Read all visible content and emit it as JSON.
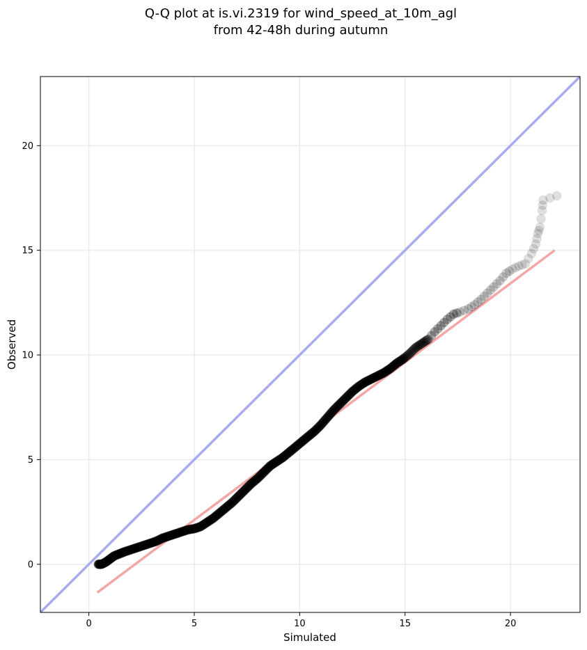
{
  "chart_data": {
    "type": "scatter",
    "title": "Q-Q plot at is.vi.2319 for wind_speed_at_10m_agl",
    "subtitle": "from 42-48h during autumn",
    "xlabel": "Simulated",
    "ylabel": "Observed",
    "xlim": [
      -2.3,
      23.3
    ],
    "ylim": [
      -2.3,
      23.3
    ],
    "xticks": [
      0,
      5,
      10,
      15,
      20
    ],
    "yticks": [
      0,
      5,
      10,
      15,
      20
    ],
    "xtick_labels": [
      "0",
      "5",
      "10",
      "15",
      "20"
    ],
    "ytick_labels": [
      "0",
      "5",
      "10",
      "15",
      "20"
    ],
    "grid": true,
    "identity_line": {
      "color": "#a8aaf2",
      "from": [
        -2.3,
        -2.3
      ],
      "to": [
        23.3,
        23.3
      ]
    },
    "fit_line": {
      "color": "#f4a6a6",
      "from": [
        0.4,
        -1.35
      ],
      "to": [
        22.1,
        15.0
      ]
    },
    "point_color": "#000000",
    "points": [
      [
        0.45,
        0.0
      ],
      [
        0.6,
        0.0
      ],
      [
        0.8,
        0.1
      ],
      [
        1.0,
        0.25
      ],
      [
        1.2,
        0.4
      ],
      [
        1.45,
        0.5
      ],
      [
        1.7,
        0.6
      ],
      [
        2.0,
        0.7
      ],
      [
        2.3,
        0.8
      ],
      [
        2.6,
        0.9
      ],
      [
        2.9,
        1.0
      ],
      [
        3.2,
        1.1
      ],
      [
        3.5,
        1.25
      ],
      [
        3.8,
        1.35
      ],
      [
        4.1,
        1.45
      ],
      [
        4.4,
        1.55
      ],
      [
        4.7,
        1.65
      ],
      [
        5.0,
        1.7
      ],
      [
        5.3,
        1.8
      ],
      [
        5.6,
        2.0
      ],
      [
        5.9,
        2.2
      ],
      [
        6.2,
        2.45
      ],
      [
        6.5,
        2.7
      ],
      [
        6.8,
        2.95
      ],
      [
        7.1,
        3.25
      ],
      [
        7.4,
        3.55
      ],
      [
        7.7,
        3.85
      ],
      [
        8.0,
        4.1
      ],
      [
        8.3,
        4.4
      ],
      [
        8.6,
        4.7
      ],
      [
        8.9,
        4.9
      ],
      [
        9.2,
        5.1
      ],
      [
        9.5,
        5.35
      ],
      [
        9.8,
        5.6
      ],
      [
        10.1,
        5.85
      ],
      [
        10.4,
        6.1
      ],
      [
        10.7,
        6.35
      ],
      [
        11.0,
        6.65
      ],
      [
        11.3,
        7.0
      ],
      [
        11.6,
        7.35
      ],
      [
        11.9,
        7.65
      ],
      [
        12.2,
        7.95
      ],
      [
        12.5,
        8.25
      ],
      [
        12.8,
        8.5
      ],
      [
        13.1,
        8.7
      ],
      [
        13.4,
        8.85
      ],
      [
        13.7,
        9.0
      ],
      [
        14.0,
        9.15
      ],
      [
        14.3,
        9.35
      ],
      [
        14.6,
        9.6
      ],
      [
        14.9,
        9.8
      ],
      [
        15.2,
        10.05
      ],
      [
        15.5,
        10.35
      ],
      [
        15.8,
        10.55
      ],
      [
        16.1,
        10.75
      ],
      [
        16.4,
        11.1
      ],
      [
        16.7,
        11.4
      ],
      [
        17.0,
        11.7
      ],
      [
        17.3,
        11.95
      ],
      [
        17.6,
        12.05
      ],
      [
        18.0,
        12.2
      ],
      [
        18.3,
        12.4
      ],
      [
        18.6,
        12.65
      ],
      [
        18.9,
        12.95
      ],
      [
        19.2,
        13.25
      ],
      [
        19.5,
        13.55
      ],
      [
        19.8,
        13.9
      ],
      [
        20.1,
        14.1
      ],
      [
        20.4,
        14.25
      ],
      [
        20.7,
        14.35
      ],
      [
        21.0,
        14.85
      ],
      [
        21.2,
        15.3
      ],
      [
        21.3,
        15.8
      ],
      [
        21.4,
        16.1
      ],
      [
        21.5,
        16.9
      ],
      [
        21.55,
        17.4
      ],
      [
        22.2,
        17.6
      ]
    ]
  }
}
